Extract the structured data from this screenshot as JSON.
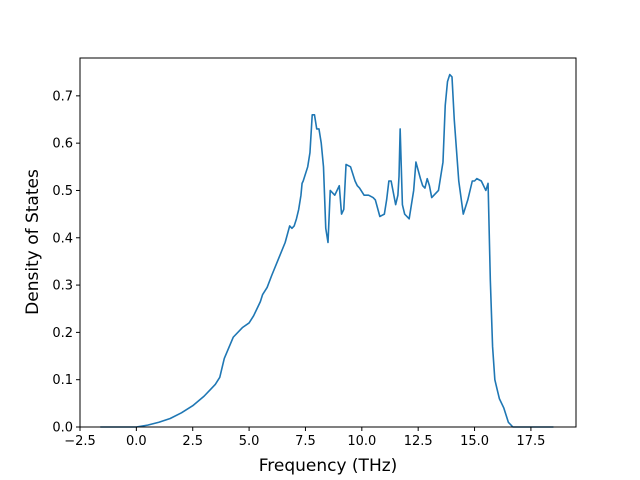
{
  "chart_data": {
    "type": "line",
    "title": "",
    "xlabel": "Frequency (THz)",
    "ylabel": "Density of States",
    "xlim": [
      -2.5,
      19.5
    ],
    "ylim": [
      0.0,
      0.78
    ],
    "xticks": [
      -2.5,
      0.0,
      2.5,
      5.0,
      7.5,
      10.0,
      12.5,
      15.0,
      17.5
    ],
    "xtick_labels": [
      "−2.5",
      "0.0",
      "2.5",
      "5.0",
      "7.5",
      "10.0",
      "12.5",
      "15.0",
      "17.5"
    ],
    "yticks": [
      0.0,
      0.1,
      0.2,
      0.3,
      0.4,
      0.5,
      0.6,
      0.7
    ],
    "ytick_labels": [
      "0.0",
      "0.1",
      "0.2",
      "0.3",
      "0.4",
      "0.5",
      "0.6",
      "0.7"
    ],
    "grid": false,
    "line_color": "#1f77b4",
    "series": [
      {
        "x": [
          -1.6,
          -1.0,
          0.0,
          0.5,
          1.0,
          1.5,
          2.0,
          2.5,
          3.0,
          3.3,
          3.5,
          3.7,
          3.8,
          3.9,
          4.3,
          4.7,
          5.0,
          5.2,
          5.4,
          5.5,
          5.6,
          5.8,
          6.0,
          6.3,
          6.6,
          6.8,
          6.9,
          7.0,
          7.1,
          7.2,
          7.3,
          7.35,
          7.4,
          7.6,
          7.7,
          7.8,
          7.9,
          8.0,
          8.1,
          8.2,
          8.3,
          8.4,
          8.5,
          8.6,
          8.8,
          9.0,
          9.1,
          9.2,
          9.3,
          9.5,
          9.7,
          9.8,
          9.9,
          10.1,
          10.3,
          10.5,
          10.6,
          10.8,
          11.0,
          11.1,
          11.2,
          11.3,
          11.5,
          11.6,
          11.65,
          11.7,
          11.8,
          11.9,
          12.1,
          12.3,
          12.4,
          12.6,
          12.7,
          12.8,
          12.9,
          13.0,
          13.1,
          13.2,
          13.4,
          13.6,
          13.7,
          13.8,
          13.9,
          14.0,
          14.1,
          14.3,
          14.5,
          14.7,
          14.9,
          15.0,
          15.1,
          15.3,
          15.5,
          15.6,
          15.7,
          15.75,
          15.8,
          15.9,
          16.0,
          16.1,
          16.3,
          16.5,
          16.7,
          16.9,
          17.5,
          18.5
        ],
        "y": [
          0.0,
          0.0,
          0.0,
          0.004,
          0.01,
          0.018,
          0.03,
          0.045,
          0.065,
          0.08,
          0.09,
          0.105,
          0.125,
          0.145,
          0.19,
          0.21,
          0.22,
          0.235,
          0.255,
          0.265,
          0.28,
          0.295,
          0.32,
          0.355,
          0.39,
          0.425,
          0.42,
          0.425,
          0.44,
          0.46,
          0.49,
          0.515,
          0.52,
          0.55,
          0.58,
          0.66,
          0.66,
          0.63,
          0.63,
          0.6,
          0.55,
          0.42,
          0.39,
          0.5,
          0.49,
          0.51,
          0.45,
          0.46,
          0.555,
          0.55,
          0.52,
          0.51,
          0.505,
          0.49,
          0.49,
          0.485,
          0.48,
          0.445,
          0.45,
          0.48,
          0.52,
          0.52,
          0.47,
          0.49,
          0.53,
          0.63,
          0.47,
          0.45,
          0.44,
          0.5,
          0.56,
          0.525,
          0.51,
          0.505,
          0.525,
          0.51,
          0.485,
          0.49,
          0.5,
          0.56,
          0.68,
          0.73,
          0.745,
          0.74,
          0.65,
          0.52,
          0.45,
          0.48,
          0.52,
          0.52,
          0.525,
          0.52,
          0.5,
          0.515,
          0.31,
          0.24,
          0.17,
          0.1,
          0.08,
          0.06,
          0.04,
          0.01,
          0.0,
          0.0,
          0.0,
          0.0
        ]
      }
    ]
  }
}
